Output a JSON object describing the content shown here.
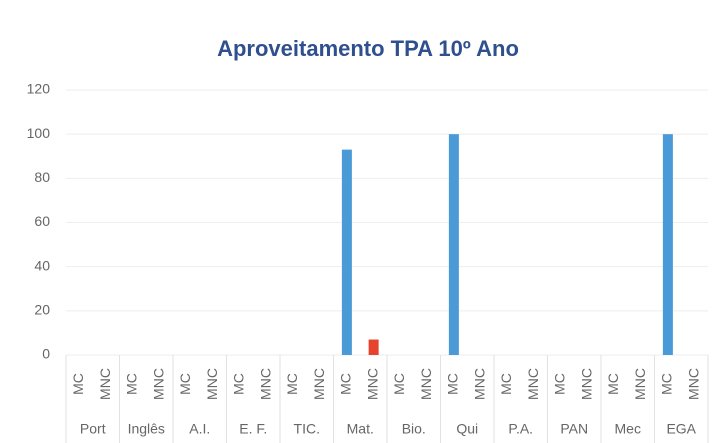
{
  "chart_data": {
    "type": "bar",
    "title": "Aproveitamento TPA 10º Ano",
    "categories": [
      "Port",
      "Inglês",
      "A.I.",
      "E. F.",
      "TIC.",
      "Mat.",
      "Bio.",
      "Qui",
      "P.A.",
      "PAN",
      "Mec",
      "EGA"
    ],
    "series": [
      {
        "name": "MC",
        "color": "#4a9ad8",
        "values": [
          0,
          0,
          0,
          0,
          0,
          93,
          0,
          100,
          0,
          0,
          0,
          100
        ]
      },
      {
        "name": "MNC",
        "color": "#e5432e",
        "values": [
          0,
          0,
          0,
          0,
          0,
          7,
          0,
          0,
          0,
          0,
          0,
          0
        ]
      }
    ],
    "ylim": [
      0,
      120
    ],
    "yticks": [
      0,
      20,
      40,
      60,
      80,
      100,
      120
    ],
    "grid": true
  }
}
